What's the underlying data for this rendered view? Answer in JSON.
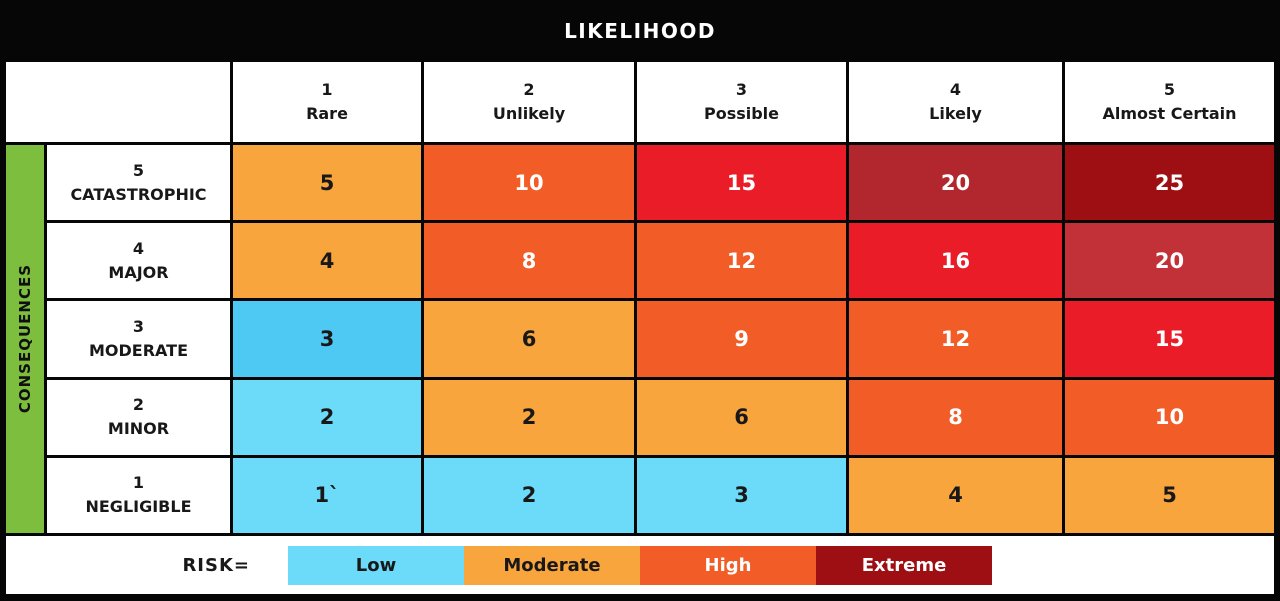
{
  "title": "LIKELIHOOD",
  "axis": {
    "x_label": "LIKELIHOOD",
    "y_label": "CONSEQUENCES"
  },
  "columns": [
    {
      "num": "1",
      "label": "Rare"
    },
    {
      "num": "2",
      "label": "Unlikely"
    },
    {
      "num": "3",
      "label": "Possible"
    },
    {
      "num": "4",
      "label": "Likely"
    },
    {
      "num": "5",
      "label": "Almost Certain"
    }
  ],
  "rows": [
    {
      "num": "5",
      "label": "CATASTROPHIC"
    },
    {
      "num": "4",
      "label": "MAJOR"
    },
    {
      "num": "3",
      "label": "MODERATE"
    },
    {
      "num": "2",
      "label": "MINOR"
    },
    {
      "num": "1",
      "label": "NEGLIGIBLE"
    }
  ],
  "cells": [
    [
      {
        "value": "5",
        "level": "moderate"
      },
      {
        "value": "10",
        "level": "high"
      },
      {
        "value": "15",
        "level": "red"
      },
      {
        "value": "20",
        "level": "crimson"
      },
      {
        "value": "25",
        "level": "extreme"
      }
    ],
    [
      {
        "value": "4",
        "level": "moderate"
      },
      {
        "value": "8",
        "level": "high"
      },
      {
        "value": "12",
        "level": "high"
      },
      {
        "value": "16",
        "level": "red"
      },
      {
        "value": "20",
        "level": "crimson-light"
      }
    ],
    [
      {
        "value": "3",
        "level": "low-dark"
      },
      {
        "value": "6",
        "level": "moderate"
      },
      {
        "value": "9",
        "level": "high"
      },
      {
        "value": "12",
        "level": "high"
      },
      {
        "value": "15",
        "level": "red"
      }
    ],
    [
      {
        "value": "2",
        "level": "low"
      },
      {
        "value": "2",
        "level": "moderate"
      },
      {
        "value": "6",
        "level": "moderate"
      },
      {
        "value": "8",
        "level": "high"
      },
      {
        "value": "10",
        "level": "high"
      }
    ],
    [
      {
        "value": "1`",
        "level": "low"
      },
      {
        "value": "2",
        "level": "low"
      },
      {
        "value": "3",
        "level": "low"
      },
      {
        "value": "4",
        "level": "moderate"
      },
      {
        "value": "5",
        "level": "moderate"
      }
    ]
  ],
  "legend": {
    "label": "RISK=",
    "items": [
      {
        "label": "Low",
        "level": "low"
      },
      {
        "label": "Moderate",
        "level": "moderate"
      },
      {
        "label": "High",
        "level": "high"
      },
      {
        "label": "Extreme",
        "level": "extreme"
      }
    ]
  },
  "colors": {
    "low": "#6CDBF9",
    "low_dark": "#4EC9F3",
    "moderate": "#F7A53C",
    "high": "#F15C27",
    "red": "#E91C27",
    "crimson": "#B2262E",
    "crimson_light": "#C23138",
    "extreme": "#9E0F14",
    "green": "#7DBE3F",
    "frame": "#060606"
  },
  "chart_data": {
    "type": "heatmap",
    "title": "LIKELIHOOD",
    "x_axis_label": "LIKELIHOOD",
    "y_axis_label": "CONSEQUENCES",
    "x_categories": [
      "1 Rare",
      "2 Unlikely",
      "3 Possible",
      "4 Likely",
      "5 Almost Certain"
    ],
    "y_categories": [
      "5 Catastrophic",
      "4 Major",
      "3 Moderate",
      "2 Minor",
      "1 Negligible"
    ],
    "values": [
      [
        5,
        10,
        15,
        20,
        25
      ],
      [
        4,
        8,
        12,
        16,
        20
      ],
      [
        3,
        6,
        9,
        12,
        15
      ],
      [
        2,
        2,
        6,
        8,
        10
      ],
      [
        1,
        2,
        3,
        4,
        5
      ]
    ],
    "cell_text": [
      [
        "5",
        "10",
        "15",
        "20",
        "25"
      ],
      [
        "4",
        "8",
        "12",
        "16",
        "20"
      ],
      [
        "3",
        "6",
        "9",
        "12",
        "15"
      ],
      [
        "2",
        "2",
        "6",
        "8",
        "10"
      ],
      [
        "1`",
        "2",
        "3",
        "4",
        "5"
      ]
    ],
    "levels": [
      [
        "moderate",
        "high",
        "red",
        "crimson",
        "extreme"
      ],
      [
        "moderate",
        "high",
        "high",
        "red",
        "crimson-light"
      ],
      [
        "low-dark",
        "moderate",
        "high",
        "high",
        "red"
      ],
      [
        "low",
        "moderate",
        "moderate",
        "high",
        "high"
      ],
      [
        "low",
        "low",
        "low",
        "moderate",
        "moderate"
      ]
    ],
    "legend": [
      "Low",
      "Moderate",
      "High",
      "Extreme"
    ],
    "legend_position": "bottom",
    "grid": true
  }
}
